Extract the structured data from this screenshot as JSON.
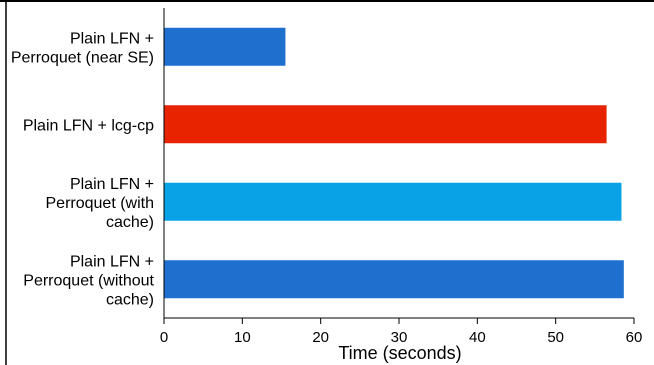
{
  "chart_data": {
    "type": "bar",
    "orientation": "horizontal",
    "xlabel": "Time (seconds)",
    "ylabel": "",
    "xlim": [
      0,
      60
    ],
    "x_ticks": [
      0,
      10,
      20,
      30,
      40,
      50,
      60
    ],
    "grid": false,
    "legend": "none",
    "categories": [
      {
        "lines": [
          "Plain LFN +",
          "Perroquet (near SE)"
        ]
      },
      {
        "lines": [
          "Plain LFN + lcg-cp"
        ]
      },
      {
        "lines": [
          "Plain LFN +",
          "Perroquet (with",
          "cache)"
        ]
      },
      {
        "lines": [
          "Plain LFN +",
          "Perroquet (without",
          "cache)"
        ]
      }
    ],
    "values": [
      15.5,
      56.5,
      58.4,
      58.7
    ],
    "colors": [
      "#1f6fcf",
      "#e82400",
      "#09a2e6",
      "#1f6fcf"
    ]
  }
}
